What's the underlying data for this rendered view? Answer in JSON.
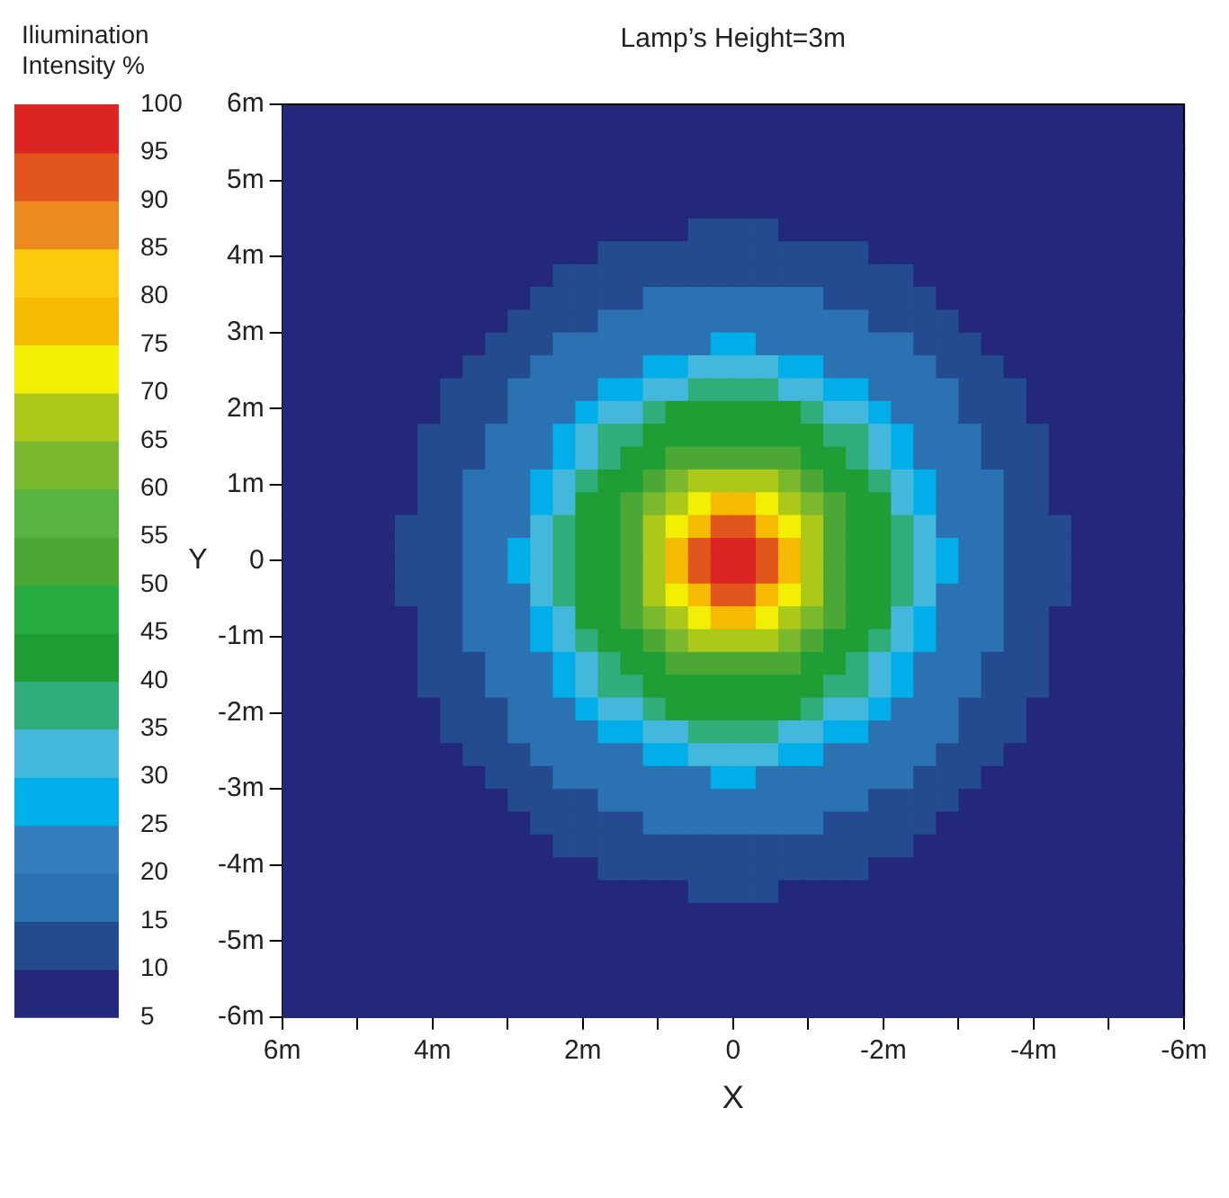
{
  "chart_data": {
    "type": "heatmap",
    "title": "Lamp’s Height=3m",
    "xlabel": "X",
    "ylabel": "Y",
    "clabel": "Iliumination Intensity %",
    "xlim": [
      6,
      -6
    ],
    "ylim": [
      -6,
      6
    ],
    "xticks": [
      {
        "value": 6,
        "label": "6m"
      },
      {
        "value": 5,
        "label": null
      },
      {
        "value": 4,
        "label": "4m"
      },
      {
        "value": 3,
        "label": null
      },
      {
        "value": 2,
        "label": "2m"
      },
      {
        "value": 1,
        "label": null
      },
      0,
      {
        "value": -1,
        "label": null
      },
      {
        "value": -2,
        "label": "-2m"
      },
      {
        "value": -3,
        "label": null
      },
      {
        "value": -4,
        "label": "-4m"
      },
      {
        "value": -5,
        "label": null
      },
      {
        "value": -6,
        "label": "-6m"
      }
    ],
    "yticks": [
      {
        "value": 6,
        "label": "6m"
      },
      {
        "value": 5,
        "label": "5m"
      },
      {
        "value": 4,
        "label": "4m"
      },
      {
        "value": 3,
        "label": "3m"
      },
      {
        "value": 2,
        "label": "2m"
      },
      {
        "value": 1,
        "label": "1m"
      },
      0,
      {
        "value": -1,
        "label": "-1m"
      },
      {
        "value": -2,
        "label": "-2m"
      },
      {
        "value": -3,
        "label": "-3m"
      },
      {
        "value": -4,
        "label": "-4m"
      },
      {
        "value": -5,
        "label": "-5m"
      },
      {
        "value": -6,
        "label": "-6m"
      }
    ],
    "clim": [
      5,
      100
    ],
    "cticks": [
      5,
      10,
      15,
      20,
      25,
      30,
      35,
      40,
      45,
      50,
      55,
      60,
      65,
      70,
      75,
      80,
      85,
      90,
      95,
      100
    ],
    "colors": [
      "#23287a",
      "#244a8f",
      "#2a72b2",
      "#347ebe",
      "#00aeea",
      "#44b8dc",
      "#2fae7c",
      "#1e9e35",
      "#26ac41",
      "#4ca834",
      "#58b440",
      "#7ab82e",
      "#acc91a",
      "#f2ef05",
      "#f4bb00",
      "#fcca0c",
      "#ec8a1e",
      "#e2561e",
      "#dc2422"
    ],
    "cells": [
      [
        7.5,
        7.5,
        7.5,
        7.5,
        7.5,
        7.5,
        7.5,
        7.5,
        7.5,
        7.5,
        7.5,
        7.5,
        7.5,
        7.5,
        7.5,
        7.5,
        7.5,
        7.5,
        7.5,
        7.5,
        7.5,
        7.5,
        7.5,
        7.5,
        7.5,
        7.5,
        7.5,
        7.5,
        7.5,
        7.5,
        7.5,
        7.5,
        7.5,
        7.5,
        7.5,
        7.5,
        7.5,
        7.5,
        7.5,
        7.5
      ],
      [
        7.5,
        7.5,
        7.5,
        7.5,
        7.5,
        7.5,
        7.5,
        7.5,
        7.5,
        7.5,
        7.5,
        7.5,
        7.5,
        7.5,
        7.5,
        7.5,
        7.5,
        7.5,
        7.5,
        7.5,
        7.5,
        7.5,
        7.5,
        7.5,
        7.5,
        7.5,
        7.5,
        7.5,
        7.5,
        7.5,
        7.5,
        7.5,
        7.5,
        7.5,
        7.5,
        7.5,
        7.5,
        7.5,
        7.5,
        7.5
      ],
      [
        7.5,
        7.5,
        7.5,
        7.5,
        7.5,
        7.5,
        7.5,
        7.5,
        7.5,
        7.5,
        7.5,
        7.5,
        7.5,
        7.5,
        7.5,
        7.5,
        7.5,
        7.5,
        7.5,
        7.5,
        7.5,
        7.5,
        7.5,
        7.5,
        7.5,
        7.5,
        7.5,
        7.5,
        7.5,
        7.5,
        7.5,
        7.5,
        7.5,
        7.5,
        7.5,
        7.5,
        7.5,
        7.5,
        7.5,
        7.5
      ],
      [
        7.5,
        7.5,
        7.5,
        7.5,
        7.5,
        7.5,
        7.5,
        7.5,
        7.5,
        7.5,
        7.5,
        7.5,
        7.5,
        7.5,
        7.5,
        7.5,
        7.5,
        7.5,
        7.5,
        7.5,
        7.5,
        7.5,
        7.5,
        7.5,
        7.5,
        7.5,
        7.5,
        7.5,
        7.5,
        7.5,
        7.5,
        7.5,
        7.5,
        7.5,
        7.5,
        7.5,
        7.5,
        7.5,
        7.5,
        7.5
      ],
      [
        7.5,
        7.5,
        7.5,
        7.5,
        7.5,
        7.5,
        7.5,
        7.5,
        7.5,
        7.5,
        7.5,
        7.5,
        7.5,
        7.5,
        7.5,
        7.5,
        7.5,
        7.5,
        7.5,
        7.5,
        7.5,
        7.5,
        7.5,
        7.5,
        7.5,
        7.5,
        7.5,
        7.5,
        7.5,
        7.5,
        7.5,
        7.5,
        7.5,
        7.5,
        7.5,
        7.5,
        7.5,
        7.5,
        7.5,
        7.5
      ],
      [
        7.5,
        7.5,
        7.5,
        7.5,
        7.5,
        7.5,
        7.5,
        7.5,
        7.5,
        7.5,
        7.5,
        7.5,
        7.5,
        7.5,
        7.5,
        7.5,
        7.5,
        7.5,
        12.5,
        12.5,
        12.5,
        12.5,
        7.5,
        7.5,
        7.5,
        7.5,
        7.5,
        7.5,
        7.5,
        7.5,
        7.5,
        7.5,
        7.5,
        7.5,
        7.5,
        7.5,
        7.5,
        7.5,
        7.5,
        7.5
      ],
      [
        7.5,
        7.5,
        7.5,
        7.5,
        7.5,
        7.5,
        7.5,
        7.5,
        7.5,
        7.5,
        7.5,
        7.5,
        7.5,
        7.5,
        12.5,
        12.5,
        12.5,
        12.5,
        12.5,
        12.5,
        12.5,
        12.5,
        12.5,
        12.5,
        12.5,
        12.5,
        7.5,
        7.5,
        7.5,
        7.5,
        7.5,
        7.5,
        7.5,
        7.5,
        7.5,
        7.5,
        7.5,
        7.5,
        7.5,
        7.5
      ],
      [
        7.5,
        7.5,
        7.5,
        7.5,
        7.5,
        7.5,
        7.5,
        7.5,
        7.5,
        7.5,
        7.5,
        7.5,
        12.5,
        12.5,
        12.5,
        12.5,
        12.5,
        12.5,
        12.5,
        12.5,
        12.5,
        12.5,
        12.5,
        12.5,
        12.5,
        12.5,
        12.5,
        12.5,
        7.5,
        7.5,
        7.5,
        7.5,
        7.5,
        7.5,
        7.5,
        7.5,
        7.5,
        7.5,
        7.5,
        7.5
      ],
      [
        7.5,
        7.5,
        7.5,
        7.5,
        7.5,
        7.5,
        7.5,
        7.5,
        7.5,
        7.5,
        7.5,
        12.5,
        12.5,
        12.5,
        12.5,
        12.5,
        17.5,
        17.5,
        17.5,
        17.5,
        17.5,
        17.5,
        17.5,
        17.5,
        12.5,
        12.5,
        12.5,
        12.5,
        12.5,
        7.5,
        7.5,
        7.5,
        7.5,
        7.5,
        7.5,
        7.5,
        7.5,
        7.5,
        7.5,
        7.5
      ],
      [
        7.5,
        7.5,
        7.5,
        7.5,
        7.5,
        7.5,
        7.5,
        7.5,
        7.5,
        7.5,
        12.5,
        12.5,
        12.5,
        12.5,
        17.5,
        17.5,
        17.5,
        17.5,
        17.5,
        17.5,
        17.5,
        17.5,
        17.5,
        17.5,
        17.5,
        17.5,
        12.5,
        12.5,
        12.5,
        12.5,
        7.5,
        7.5,
        7.5,
        7.5,
        7.5,
        7.5,
        7.5,
        7.5,
        7.5,
        7.5
      ],
      [
        7.5,
        7.5,
        7.5,
        7.5,
        7.5,
        7.5,
        7.5,
        7.5,
        7.5,
        12.5,
        12.5,
        12.5,
        17.5,
        17.5,
        17.5,
        17.5,
        17.5,
        17.5,
        17.5,
        27.5,
        27.5,
        17.5,
        17.5,
        17.5,
        17.5,
        17.5,
        17.5,
        17.5,
        12.5,
        12.5,
        12.5,
        7.5,
        7.5,
        7.5,
        7.5,
        7.5,
        7.5,
        7.5,
        7.5,
        7.5
      ],
      [
        7.5,
        7.5,
        7.5,
        7.5,
        7.5,
        7.5,
        7.5,
        7.5,
        12.5,
        12.5,
        12.5,
        17.5,
        17.5,
        17.5,
        17.5,
        17.5,
        27.5,
        27.5,
        32.5,
        32.5,
        32.5,
        32.5,
        27.5,
        27.5,
        17.5,
        17.5,
        17.5,
        17.5,
        17.5,
        12.5,
        12.5,
        12.5,
        7.5,
        7.5,
        7.5,
        7.5,
        7.5,
        7.5,
        7.5,
        7.5
      ],
      [
        7.5,
        7.5,
        7.5,
        7.5,
        7.5,
        7.5,
        7.5,
        12.5,
        12.5,
        12.5,
        17.5,
        17.5,
        17.5,
        17.5,
        27.5,
        27.5,
        32.5,
        32.5,
        37.5,
        37.5,
        37.5,
        37.5,
        32.5,
        32.5,
        27.5,
        27.5,
        17.5,
        17.5,
        17.5,
        17.5,
        12.5,
        12.5,
        12.5,
        7.5,
        7.5,
        7.5,
        7.5,
        7.5,
        7.5,
        7.5
      ],
      [
        7.5,
        7.5,
        7.5,
        7.5,
        7.5,
        7.5,
        7.5,
        12.5,
        12.5,
        12.5,
        17.5,
        17.5,
        17.5,
        27.5,
        32.5,
        32.5,
        37.5,
        42.5,
        42.5,
        42.5,
        42.5,
        42.5,
        42.5,
        37.5,
        32.5,
        32.5,
        27.5,
        17.5,
        17.5,
        17.5,
        12.5,
        12.5,
        12.5,
        7.5,
        7.5,
        7.5,
        7.5,
        7.5,
        7.5,
        7.5
      ],
      [
        7.5,
        7.5,
        7.5,
        7.5,
        7.5,
        7.5,
        12.5,
        12.5,
        12.5,
        17.5,
        17.5,
        17.5,
        27.5,
        32.5,
        37.5,
        37.5,
        42.5,
        42.5,
        42.5,
        42.5,
        42.5,
        42.5,
        42.5,
        42.5,
        37.5,
        37.5,
        32.5,
        27.5,
        17.5,
        17.5,
        17.5,
        12.5,
        12.5,
        12.5,
        7.5,
        7.5,
        7.5,
        7.5,
        7.5,
        7.5
      ],
      [
        7.5,
        7.5,
        7.5,
        7.5,
        7.5,
        7.5,
        12.5,
        12.5,
        12.5,
        17.5,
        17.5,
        17.5,
        27.5,
        32.5,
        37.5,
        42.5,
        42.5,
        52.5,
        52.5,
        52.5,
        52.5,
        52.5,
        52.5,
        42.5,
        42.5,
        37.5,
        32.5,
        27.5,
        17.5,
        17.5,
        17.5,
        12.5,
        12.5,
        12.5,
        7.5,
        7.5,
        7.5,
        7.5,
        7.5,
        7.5
      ],
      [
        7.5,
        7.5,
        7.5,
        7.5,
        7.5,
        7.5,
        12.5,
        12.5,
        17.5,
        17.5,
        17.5,
        27.5,
        32.5,
        37.5,
        42.5,
        42.5,
        52.5,
        62.5,
        67.5,
        67.5,
        67.5,
        67.5,
        62.5,
        52.5,
        42.5,
        42.5,
        37.5,
        32.5,
        27.5,
        17.5,
        17.5,
        17.5,
        12.5,
        12.5,
        7.5,
        7.5,
        7.5,
        7.5,
        7.5,
        7.5
      ],
      [
        7.5,
        7.5,
        7.5,
        7.5,
        7.5,
        7.5,
        12.5,
        12.5,
        17.5,
        17.5,
        17.5,
        27.5,
        32.5,
        42.5,
        42.5,
        52.5,
        62.5,
        67.5,
        72.5,
        77.5,
        77.5,
        72.5,
        67.5,
        62.5,
        52.5,
        42.5,
        42.5,
        32.5,
        27.5,
        17.5,
        17.5,
        17.5,
        12.5,
        12.5,
        7.5,
        7.5,
        7.5,
        7.5,
        7.5,
        7.5
      ],
      [
        7.5,
        7.5,
        7.5,
        7.5,
        7.5,
        12.5,
        12.5,
        12.5,
        17.5,
        17.5,
        17.5,
        32.5,
        37.5,
        42.5,
        42.5,
        52.5,
        67.5,
        72.5,
        77.5,
        92.5,
        92.5,
        77.5,
        72.5,
        67.5,
        52.5,
        42.5,
        42.5,
        37.5,
        32.5,
        17.5,
        17.5,
        17.5,
        12.5,
        12.5,
        12.5,
        7.5,
        7.5,
        7.5,
        7.5,
        7.5
      ],
      [
        7.5,
        7.5,
        7.5,
        7.5,
        7.5,
        12.5,
        12.5,
        12.5,
        17.5,
        17.5,
        27.5,
        32.5,
        37.5,
        42.5,
        42.5,
        52.5,
        67.5,
        77.5,
        92.5,
        97.5,
        97.5,
        92.5,
        77.5,
        67.5,
        52.5,
        42.5,
        42.5,
        37.5,
        32.5,
        27.5,
        17.5,
        17.5,
        12.5,
        12.5,
        12.5,
        7.5,
        7.5,
        7.5,
        7.5,
        7.5
      ],
      [
        7.5,
        7.5,
        7.5,
        7.5,
        7.5,
        12.5,
        12.5,
        12.5,
        17.5,
        17.5,
        27.5,
        32.5,
        37.5,
        42.5,
        42.5,
        52.5,
        67.5,
        77.5,
        92.5,
        97.5,
        97.5,
        92.5,
        77.5,
        67.5,
        52.5,
        42.5,
        42.5,
        37.5,
        32.5,
        27.5,
        17.5,
        17.5,
        12.5,
        12.5,
        12.5,
        7.5,
        7.5,
        7.5,
        7.5,
        7.5
      ],
      [
        7.5,
        7.5,
        7.5,
        7.5,
        7.5,
        12.5,
        12.5,
        12.5,
        17.5,
        17.5,
        17.5,
        32.5,
        37.5,
        42.5,
        42.5,
        52.5,
        67.5,
        72.5,
        77.5,
        92.5,
        92.5,
        77.5,
        72.5,
        67.5,
        52.5,
        42.5,
        42.5,
        37.5,
        32.5,
        17.5,
        17.5,
        17.5,
        12.5,
        12.5,
        12.5,
        7.5,
        7.5,
        7.5,
        7.5,
        7.5
      ],
      [
        7.5,
        7.5,
        7.5,
        7.5,
        7.5,
        7.5,
        12.5,
        12.5,
        17.5,
        17.5,
        17.5,
        27.5,
        32.5,
        42.5,
        42.5,
        52.5,
        62.5,
        67.5,
        72.5,
        77.5,
        77.5,
        72.5,
        67.5,
        62.5,
        52.5,
        42.5,
        42.5,
        32.5,
        27.5,
        17.5,
        17.5,
        17.5,
        12.5,
        12.5,
        7.5,
        7.5,
        7.5,
        7.5,
        7.5,
        7.5
      ],
      [
        7.5,
        7.5,
        7.5,
        7.5,
        7.5,
        7.5,
        12.5,
        12.5,
        17.5,
        17.5,
        17.5,
        27.5,
        32.5,
        37.5,
        42.5,
        42.5,
        52.5,
        62.5,
        67.5,
        67.5,
        67.5,
        67.5,
        62.5,
        52.5,
        42.5,
        42.5,
        37.5,
        32.5,
        27.5,
        17.5,
        17.5,
        17.5,
        12.5,
        12.5,
        7.5,
        7.5,
        7.5,
        7.5,
        7.5,
        7.5
      ],
      [
        7.5,
        7.5,
        7.5,
        7.5,
        7.5,
        7.5,
        12.5,
        12.5,
        12.5,
        17.5,
        17.5,
        17.5,
        27.5,
        32.5,
        37.5,
        42.5,
        42.5,
        52.5,
        52.5,
        52.5,
        52.5,
        52.5,
        52.5,
        42.5,
        42.5,
        37.5,
        32.5,
        27.5,
        17.5,
        17.5,
        17.5,
        12.5,
        12.5,
        12.5,
        7.5,
        7.5,
        7.5,
        7.5,
        7.5,
        7.5
      ],
      [
        7.5,
        7.5,
        7.5,
        7.5,
        7.5,
        7.5,
        12.5,
        12.5,
        12.5,
        17.5,
        17.5,
        17.5,
        27.5,
        32.5,
        37.5,
        37.5,
        42.5,
        42.5,
        42.5,
        42.5,
        42.5,
        42.5,
        42.5,
        42.5,
        37.5,
        37.5,
        32.5,
        27.5,
        17.5,
        17.5,
        17.5,
        12.5,
        12.5,
        12.5,
        7.5,
        7.5,
        7.5,
        7.5,
        7.5,
        7.5
      ],
      [
        7.5,
        7.5,
        7.5,
        7.5,
        7.5,
        7.5,
        7.5,
        12.5,
        12.5,
        12.5,
        17.5,
        17.5,
        17.5,
        27.5,
        32.5,
        32.5,
        37.5,
        42.5,
        42.5,
        42.5,
        42.5,
        42.5,
        42.5,
        37.5,
        32.5,
        32.5,
        27.5,
        17.5,
        17.5,
        17.5,
        12.5,
        12.5,
        12.5,
        7.5,
        7.5,
        7.5,
        7.5,
        7.5,
        7.5,
        7.5
      ],
      [
        7.5,
        7.5,
        7.5,
        7.5,
        7.5,
        7.5,
        7.5,
        12.5,
        12.5,
        12.5,
        17.5,
        17.5,
        17.5,
        17.5,
        27.5,
        27.5,
        32.5,
        32.5,
        37.5,
        37.5,
        37.5,
        37.5,
        32.5,
        32.5,
        27.5,
        27.5,
        17.5,
        17.5,
        17.5,
        17.5,
        12.5,
        12.5,
        12.5,
        7.5,
        7.5,
        7.5,
        7.5,
        7.5,
        7.5,
        7.5
      ],
      [
        7.5,
        7.5,
        7.5,
        7.5,
        7.5,
        7.5,
        7.5,
        7.5,
        12.5,
        12.5,
        12.5,
        17.5,
        17.5,
        17.5,
        17.5,
        17.5,
        27.5,
        27.5,
        32.5,
        32.5,
        32.5,
        32.5,
        27.5,
        27.5,
        17.5,
        17.5,
        17.5,
        17.5,
        17.5,
        12.5,
        12.5,
        12.5,
        7.5,
        7.5,
        7.5,
        7.5,
        7.5,
        7.5,
        7.5,
        7.5
      ],
      [
        7.5,
        7.5,
        7.5,
        7.5,
        7.5,
        7.5,
        7.5,
        7.5,
        7.5,
        12.5,
        12.5,
        12.5,
        17.5,
        17.5,
        17.5,
        17.5,
        17.5,
        17.5,
        17.5,
        27.5,
        27.5,
        17.5,
        17.5,
        17.5,
        17.5,
        17.5,
        17.5,
        17.5,
        12.5,
        12.5,
        12.5,
        7.5,
        7.5,
        7.5,
        7.5,
        7.5,
        7.5,
        7.5,
        7.5,
        7.5
      ],
      [
        7.5,
        7.5,
        7.5,
        7.5,
        7.5,
        7.5,
        7.5,
        7.5,
        7.5,
        7.5,
        12.5,
        12.5,
        12.5,
        12.5,
        17.5,
        17.5,
        17.5,
        17.5,
        17.5,
        17.5,
        17.5,
        17.5,
        17.5,
        17.5,
        17.5,
        17.5,
        12.5,
        12.5,
        12.5,
        12.5,
        7.5,
        7.5,
        7.5,
        7.5,
        7.5,
        7.5,
        7.5,
        7.5,
        7.5,
        7.5
      ],
      [
        7.5,
        7.5,
        7.5,
        7.5,
        7.5,
        7.5,
        7.5,
        7.5,
        7.5,
        7.5,
        7.5,
        12.5,
        12.5,
        12.5,
        12.5,
        12.5,
        17.5,
        17.5,
        17.5,
        17.5,
        17.5,
        17.5,
        17.5,
        17.5,
        12.5,
        12.5,
        12.5,
        12.5,
        12.5,
        7.5,
        7.5,
        7.5,
        7.5,
        7.5,
        7.5,
        7.5,
        7.5,
        7.5,
        7.5,
        7.5
      ],
      [
        7.5,
        7.5,
        7.5,
        7.5,
        7.5,
        7.5,
        7.5,
        7.5,
        7.5,
        7.5,
        7.5,
        7.5,
        12.5,
        12.5,
        12.5,
        12.5,
        12.5,
        12.5,
        12.5,
        12.5,
        12.5,
        12.5,
        12.5,
        12.5,
        12.5,
        12.5,
        12.5,
        12.5,
        7.5,
        7.5,
        7.5,
        7.5,
        7.5,
        7.5,
        7.5,
        7.5,
        7.5,
        7.5,
        7.5,
        7.5
      ],
      [
        7.5,
        7.5,
        7.5,
        7.5,
        7.5,
        7.5,
        7.5,
        7.5,
        7.5,
        7.5,
        7.5,
        7.5,
        7.5,
        7.5,
        12.5,
        12.5,
        12.5,
        12.5,
        12.5,
        12.5,
        12.5,
        12.5,
        12.5,
        12.5,
        12.5,
        12.5,
        7.5,
        7.5,
        7.5,
        7.5,
        7.5,
        7.5,
        7.5,
        7.5,
        7.5,
        7.5,
        7.5,
        7.5,
        7.5,
        7.5
      ],
      [
        7.5,
        7.5,
        7.5,
        7.5,
        7.5,
        7.5,
        7.5,
        7.5,
        7.5,
        7.5,
        7.5,
        7.5,
        7.5,
        7.5,
        7.5,
        7.5,
        7.5,
        7.5,
        12.5,
        12.5,
        12.5,
        12.5,
        7.5,
        7.5,
        7.5,
        7.5,
        7.5,
        7.5,
        7.5,
        7.5,
        7.5,
        7.5,
        7.5,
        7.5,
        7.5,
        7.5,
        7.5,
        7.5,
        7.5,
        7.5
      ],
      [
        7.5,
        7.5,
        7.5,
        7.5,
        7.5,
        7.5,
        7.5,
        7.5,
        7.5,
        7.5,
        7.5,
        7.5,
        7.5,
        7.5,
        7.5,
        7.5,
        7.5,
        7.5,
        7.5,
        7.5,
        7.5,
        7.5,
        7.5,
        7.5,
        7.5,
        7.5,
        7.5,
        7.5,
        7.5,
        7.5,
        7.5,
        7.5,
        7.5,
        7.5,
        7.5,
        7.5,
        7.5,
        7.5,
        7.5,
        7.5
      ],
      [
        7.5,
        7.5,
        7.5,
        7.5,
        7.5,
        7.5,
        7.5,
        7.5,
        7.5,
        7.5,
        7.5,
        7.5,
        7.5,
        7.5,
        7.5,
        7.5,
        7.5,
        7.5,
        7.5,
        7.5,
        7.5,
        7.5,
        7.5,
        7.5,
        7.5,
        7.5,
        7.5,
        7.5,
        7.5,
        7.5,
        7.5,
        7.5,
        7.5,
        7.5,
        7.5,
        7.5,
        7.5,
        7.5,
        7.5,
        7.5
      ],
      [
        7.5,
        7.5,
        7.5,
        7.5,
        7.5,
        7.5,
        7.5,
        7.5,
        7.5,
        7.5,
        7.5,
        7.5,
        7.5,
        7.5,
        7.5,
        7.5,
        7.5,
        7.5,
        7.5,
        7.5,
        7.5,
        7.5,
        7.5,
        7.5,
        7.5,
        7.5,
        7.5,
        7.5,
        7.5,
        7.5,
        7.5,
        7.5,
        7.5,
        7.5,
        7.5,
        7.5,
        7.5,
        7.5,
        7.5,
        7.5
      ],
      [
        7.5,
        7.5,
        7.5,
        7.5,
        7.5,
        7.5,
        7.5,
        7.5,
        7.5,
        7.5,
        7.5,
        7.5,
        7.5,
        7.5,
        7.5,
        7.5,
        7.5,
        7.5,
        7.5,
        7.5,
        7.5,
        7.5,
        7.5,
        7.5,
        7.5,
        7.5,
        7.5,
        7.5,
        7.5,
        7.5,
        7.5,
        7.5,
        7.5,
        7.5,
        7.5,
        7.5,
        7.5,
        7.5,
        7.5,
        7.5
      ],
      [
        7.5,
        7.5,
        7.5,
        7.5,
        7.5,
        7.5,
        7.5,
        7.5,
        7.5,
        7.5,
        7.5,
        7.5,
        7.5,
        7.5,
        7.5,
        7.5,
        7.5,
        7.5,
        7.5,
        7.5,
        7.5,
        7.5,
        7.5,
        7.5,
        7.5,
        7.5,
        7.5,
        7.5,
        7.5,
        7.5,
        7.5,
        7.5,
        7.5,
        7.5,
        7.5,
        7.5,
        7.5,
        7.5,
        7.5,
        7.5
      ]
    ]
  }
}
